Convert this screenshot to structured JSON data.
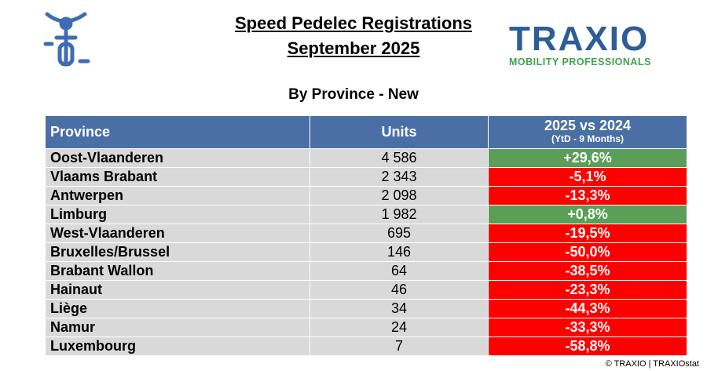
{
  "header": {
    "title_lines": [
      "Speed Pedelec Registrations",
      "September 2025"
    ],
    "subtitle": "By Province - New"
  },
  "logo": {
    "name": "TRAXIO",
    "tagline": "MOBILITY PROFESSIONALS"
  },
  "table": {
    "columns": [
      {
        "title": "Province"
      },
      {
        "title": "Units"
      },
      {
        "title": "2025 vs 2024",
        "subtitle": "(YtD - 9 Months)"
      }
    ],
    "rows": [
      {
        "province": "Oost-Vlaanderen",
        "units": "4 586",
        "change": "+29,6%",
        "color": "#5b9e57"
      },
      {
        "province": "Vlaams Brabant",
        "units": "2 343",
        "change": "-5,1%",
        "color": "#ff0000"
      },
      {
        "province": "Antwerpen",
        "units": "2 098",
        "change": "-13,3%",
        "color": "#ff0000"
      },
      {
        "province": "Limburg",
        "units": "1 982",
        "change": "+0,8%",
        "color": "#5b9e57"
      },
      {
        "province": "West-Vlaanderen",
        "units": "695",
        "change": "-19,5%",
        "color": "#ff0000"
      },
      {
        "province": "Bruxelles/Brussel",
        "units": "146",
        "change": "-50,0%",
        "color": "#ff0000"
      },
      {
        "province": "Brabant Wallon",
        "units": "64",
        "change": "-38,5%",
        "color": "#ff0000"
      },
      {
        "province": "Hainaut",
        "units": "46",
        "change": "-23,3%",
        "color": "#ff0000"
      },
      {
        "province": "Liège",
        "units": "34",
        "change": "-44,3%",
        "color": "#ff0000"
      },
      {
        "province": "Namur",
        "units": "24",
        "change": "-33,3%",
        "color": "#ff0000"
      },
      {
        "province": "Luxembourg",
        "units": "7",
        "change": "-58,8%",
        "color": "#ff0000"
      }
    ]
  },
  "footer": "© TRAXIO | TRAXIOstat"
}
